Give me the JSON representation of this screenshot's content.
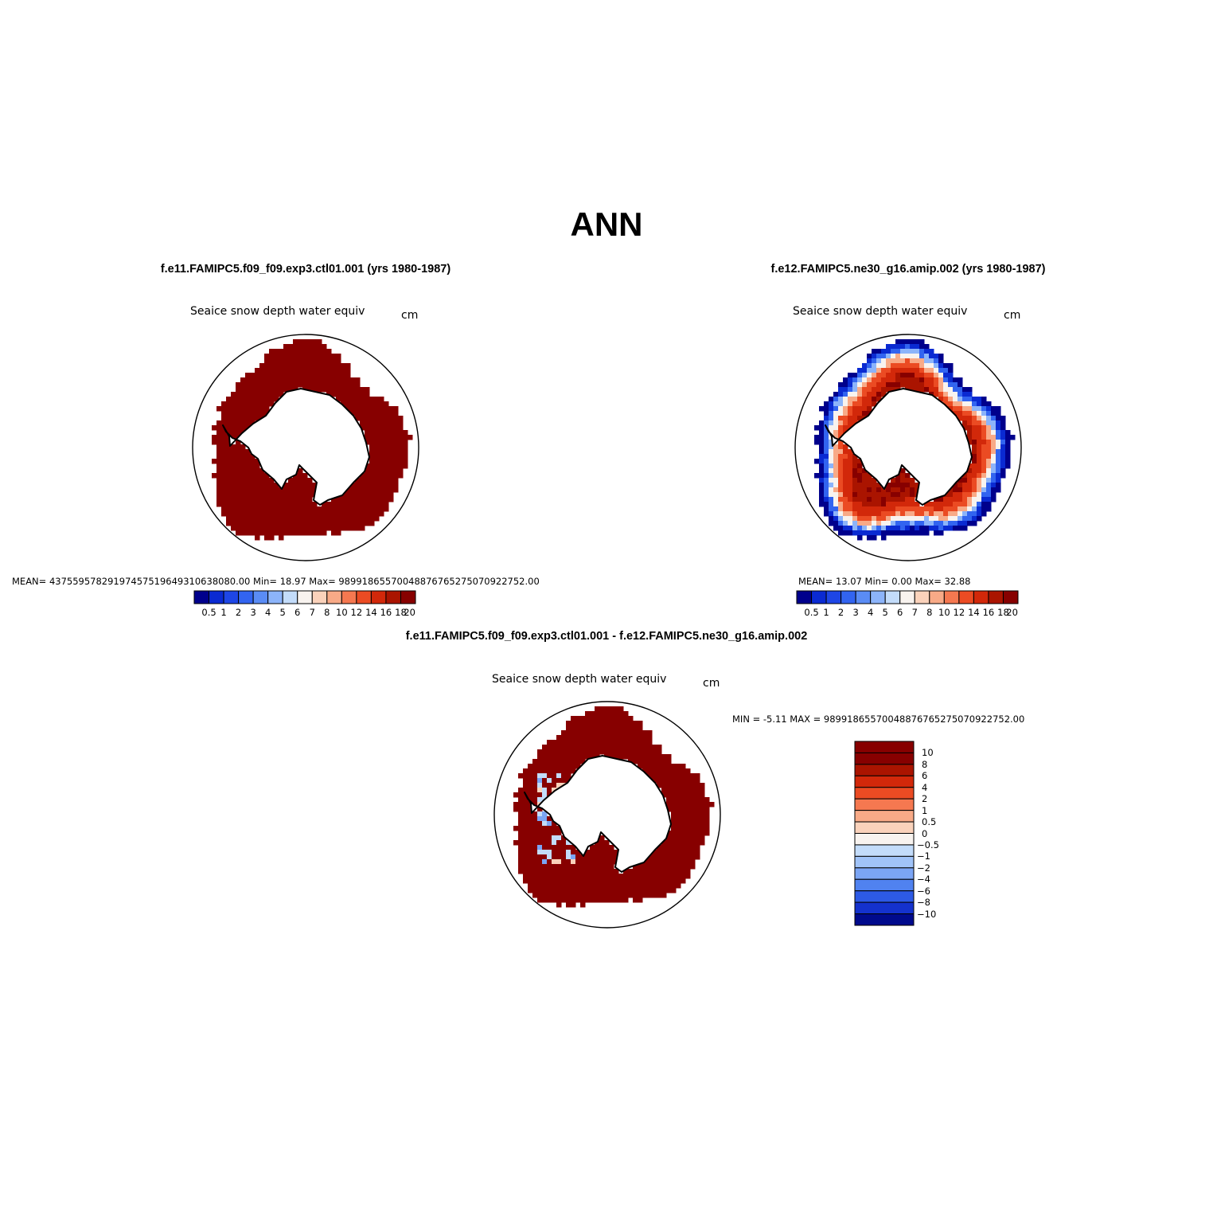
{
  "figure": {
    "title": "ANN"
  },
  "panels": [
    {
      "case": "f.e11.FAMIPC5.f09_f09.exp3.ctl01.001 (yrs 1980-1987)",
      "variable": "Seaice snow depth water equiv",
      "units": "cm",
      "stats": "MEAN= 43755957829197457519649310638080.00   Min=   18.97   Max=  98991865570048876765275070922752.00",
      "field": "uniform-max"
    },
    {
      "case": "f.e12.FAMIPC5.ne30_g16.amip.002 (yrs 1980-1987)",
      "variable": "Seaice snow depth water equiv",
      "units": "cm",
      "stats": "MEAN=   13.07   Min=    0.00   Max=   32.88",
      "field": "graded-ring"
    },
    {
      "case": "f.e11.FAMIPC5.f09_f09.exp3.ctl01.001 - f.e12.FAMIPC5.ne30_g16.amip.002",
      "variable": "Seaice snow depth water equiv",
      "units": "cm",
      "stats": "MIN =   -5.11  MAX =  98991865570048876765275070922752.00",
      "field": "difference"
    }
  ],
  "colorbar_levels": [
    "0.5",
    "1",
    "2",
    "3",
    "4",
    "5",
    "6",
    "7",
    "8",
    "10",
    "12",
    "14",
    "16",
    "18",
    "20"
  ],
  "colorbar_colors": [
    "#00008c",
    "#0a2ad2",
    "#1e46e6",
    "#3264f0",
    "#5a8cf5",
    "#8cb4fa",
    "#c3dcfa",
    "#f8f3ef",
    "#fad2bb",
    "#f8aa87",
    "#f57850",
    "#eb4b23",
    "#d2280a",
    "#aa1400",
    "#870000"
  ],
  "diff_levels": [
    "10",
    "8",
    "6",
    "4",
    "2",
    "1",
    "0.5",
    "0",
    "-0.5",
    "-1",
    "-2",
    "-4",
    "-6",
    "-8",
    "-10"
  ],
  "diff_colors": [
    "#870000",
    "#aa1400",
    "#d2280a",
    "#eb4b23",
    "#f57850",
    "#f8aa87",
    "#fad2bb",
    "#f8f3ef",
    "#c3dcfa",
    "#a0c3f8",
    "#7ba5f5",
    "#5082f0",
    "#2d5ae6",
    "#1432cd",
    "#000a8c"
  ],
  "map_colors": {
    "land": "#ffffff",
    "coast": "#000000",
    "outline": "#000000"
  }
}
